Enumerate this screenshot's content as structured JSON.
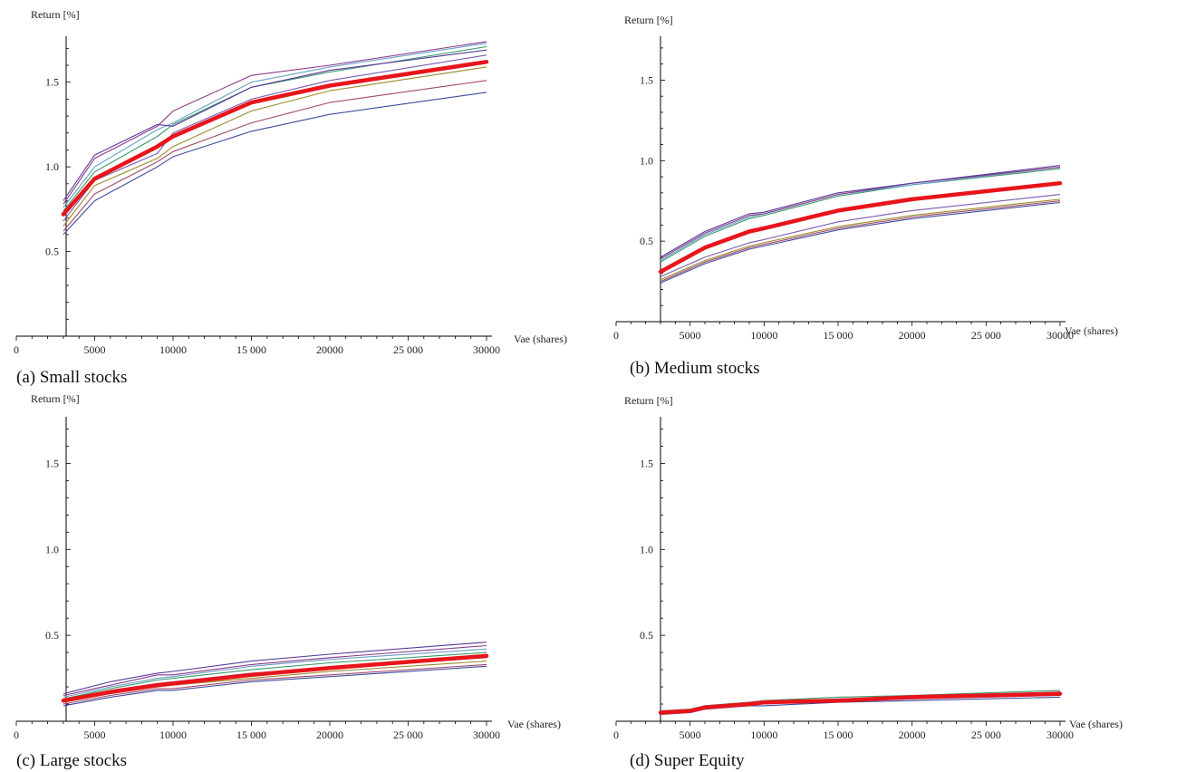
{
  "colors": {
    "axis": "#000000",
    "highlight": "#e8141b",
    "palette": [
      "#3e4a9e",
      "#a0486a",
      "#9a8a2a",
      "#7a5ab0",
      "#3a9a6a",
      "#6aa0c8",
      "#8a3a8a",
      "#5a3a9a"
    ]
  },
  "chart_data": [
    {
      "type": "line",
      "caption": "(a)   Small stocks",
      "ylabel": "Return [%]",
      "xlabel": "Vae (shares)",
      "xlim": [
        0,
        30000
      ],
      "ylim": [
        0,
        1.75
      ],
      "xticks": [
        0,
        5000,
        10000,
        15000,
        20000,
        25000,
        30000
      ],
      "xtick_labels": [
        "0",
        "5000",
        "10000",
        "15 000",
        "20000",
        "25 000",
        "30000"
      ],
      "yticks": [
        0.5,
        1.0,
        1.5
      ],
      "ytick_labels": [
        "0.5",
        "1.0",
        "1.5"
      ],
      "x": [
        3000,
        5000,
        9000,
        10000,
        15000,
        20000,
        30000
      ],
      "series": [
        {
          "values": [
            0.6,
            0.8,
            1.0,
            1.06,
            1.21,
            1.31,
            1.44
          ]
        },
        {
          "values": [
            0.62,
            0.84,
            1.03,
            1.09,
            1.26,
            1.38,
            1.51
          ]
        },
        {
          "values": [
            0.65,
            0.89,
            1.05,
            1.12,
            1.33,
            1.45,
            1.59
          ]
        },
        {
          "values": [
            0.68,
            0.92,
            1.08,
            1.2,
            1.4,
            1.51,
            1.66
          ]
        },
        {
          "values": [
            0.74,
            0.97,
            1.18,
            1.25,
            1.47,
            1.56,
            1.71
          ]
        },
        {
          "values": [
            0.76,
            1.0,
            1.22,
            1.26,
            1.5,
            1.59,
            1.73
          ]
        },
        {
          "values": [
            0.78,
            1.05,
            1.24,
            1.33,
            1.54,
            1.6,
            1.74
          ]
        },
        {
          "values": [
            0.8,
            1.07,
            1.25,
            1.24,
            1.47,
            1.57,
            1.69
          ]
        }
      ],
      "highlight": {
        "values": [
          0.72,
          0.93,
          1.12,
          1.18,
          1.38,
          1.48,
          1.62
        ]
      }
    },
    {
      "type": "line",
      "caption": "(b)   Medium stocks",
      "ylabel": "Return [%]",
      "xlabel": "Vae (shares)",
      "xlim": [
        0,
        30000
      ],
      "ylim": [
        0,
        1.75
      ],
      "xticks": [
        0,
        5000,
        10000,
        15000,
        20000,
        25000,
        30000
      ],
      "xtick_labels": [
        "0",
        "5000",
        "10000",
        "15 000",
        "20000",
        "25 000",
        "30000"
      ],
      "yticks": [
        0.5,
        1.0,
        1.5
      ],
      "ytick_labels": [
        "0.5",
        "1.0",
        "1.5"
      ],
      "x": [
        3000,
        6000,
        9000,
        10000,
        15000,
        20000,
        30000
      ],
      "series": [
        {
          "values": [
            0.24,
            0.36,
            0.45,
            0.47,
            0.57,
            0.64,
            0.74
          ]
        },
        {
          "values": [
            0.25,
            0.37,
            0.46,
            0.48,
            0.58,
            0.65,
            0.75
          ]
        },
        {
          "values": [
            0.26,
            0.38,
            0.47,
            0.49,
            0.59,
            0.66,
            0.76
          ]
        },
        {
          "values": [
            0.28,
            0.4,
            0.49,
            0.51,
            0.62,
            0.69,
            0.79
          ]
        },
        {
          "values": [
            0.37,
            0.53,
            0.64,
            0.66,
            0.78,
            0.85,
            0.95
          ]
        },
        {
          "values": [
            0.38,
            0.54,
            0.65,
            0.67,
            0.79,
            0.85,
            0.96
          ]
        },
        {
          "values": [
            0.39,
            0.55,
            0.66,
            0.67,
            0.79,
            0.86,
            0.96
          ]
        },
        {
          "values": [
            0.4,
            0.56,
            0.67,
            0.68,
            0.8,
            0.86,
            0.97
          ]
        }
      ],
      "highlight": {
        "values": [
          0.31,
          0.46,
          0.56,
          0.58,
          0.69,
          0.76,
          0.86
        ]
      }
    },
    {
      "type": "line",
      "caption": "(c)   Large stocks",
      "ylabel": "Return [%]",
      "xlabel": "Vae (shares)",
      "xlim": [
        0,
        30000
      ],
      "ylim": [
        0,
        1.75
      ],
      "xticks": [
        0,
        5000,
        10000,
        15000,
        20000,
        25000,
        30000
      ],
      "xtick_labels": [
        "0",
        "5000",
        "10000",
        "15 000",
        "20000",
        "25 000",
        "30000"
      ],
      "yticks": [
        0.5,
        1.0,
        1.5
      ],
      "ytick_labels": [
        "0.5",
        "1.0",
        "1.5"
      ],
      "x": [
        3000,
        6000,
        9000,
        10000,
        15000,
        20000,
        30000
      ],
      "series": [
        {
          "values": [
            0.09,
            0.14,
            0.18,
            0.18,
            0.23,
            0.26,
            0.32
          ]
        },
        {
          "values": [
            0.1,
            0.15,
            0.19,
            0.19,
            0.24,
            0.27,
            0.33
          ]
        },
        {
          "values": [
            0.11,
            0.16,
            0.2,
            0.21,
            0.25,
            0.29,
            0.35
          ]
        },
        {
          "values": [
            0.12,
            0.18,
            0.22,
            0.23,
            0.28,
            0.31,
            0.37
          ]
        },
        {
          "values": [
            0.13,
            0.19,
            0.24,
            0.25,
            0.3,
            0.34,
            0.4
          ]
        },
        {
          "values": [
            0.14,
            0.2,
            0.25,
            0.26,
            0.32,
            0.36,
            0.42
          ]
        },
        {
          "values": [
            0.15,
            0.21,
            0.27,
            0.27,
            0.33,
            0.37,
            0.44
          ]
        },
        {
          "values": [
            0.16,
            0.23,
            0.28,
            0.29,
            0.35,
            0.39,
            0.46
          ]
        }
      ],
      "highlight": {
        "values": [
          0.12,
          0.17,
          0.21,
          0.22,
          0.27,
          0.31,
          0.38
        ]
      }
    },
    {
      "type": "line",
      "caption": "(d)   Super Equity",
      "ylabel": "Return [%]",
      "xlabel": "Vae (shares)",
      "xlim": [
        0,
        30000
      ],
      "ylim": [
        0,
        1.75
      ],
      "xticks": [
        0,
        5000,
        10000,
        15000,
        20000,
        25000,
        30000
      ],
      "xtick_labels": [
        "0",
        "5000",
        "10000",
        "15 000",
        "20000",
        "25 000",
        "30000"
      ],
      "yticks": [
        0.5,
        1.0,
        1.5
      ],
      "ytick_labels": [
        "0.5",
        "1.0",
        "1.5"
      ],
      "x": [
        3000,
        5000,
        6000,
        9000,
        10000,
        15000,
        20000,
        30000
      ],
      "series": [
        {
          "values": [
            0.04,
            0.05,
            0.07,
            0.09,
            0.09,
            0.11,
            0.12,
            0.14
          ]
        },
        {
          "values": [
            0.05,
            0.06,
            0.08,
            0.1,
            0.1,
            0.12,
            0.13,
            0.15
          ]
        },
        {
          "values": [
            0.05,
            0.06,
            0.08,
            0.1,
            0.11,
            0.12,
            0.14,
            0.16
          ]
        },
        {
          "values": [
            0.06,
            0.07,
            0.09,
            0.11,
            0.11,
            0.13,
            0.14,
            0.17
          ]
        },
        {
          "values": [
            0.06,
            0.07,
            0.09,
            0.11,
            0.12,
            0.14,
            0.15,
            0.18
          ]
        }
      ],
      "highlight": {
        "values": [
          0.05,
          0.06,
          0.08,
          0.1,
          0.11,
          0.12,
          0.14,
          0.16
        ]
      }
    }
  ]
}
